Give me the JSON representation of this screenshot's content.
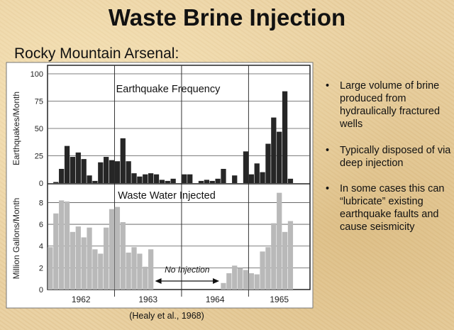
{
  "slide": {
    "title": "Waste Brine Injection",
    "subtitle": "Rocky Mountain Arsenal:",
    "bullets": [
      "Large volume of brine produced from hydraulically fractured wells",
      "Typically disposed of via deep injection",
      "In some cases this can “lubricate” existing earthquake faults and cause seismicity"
    ],
    "bullet_glyph": "•",
    "citation": "(Healy et al., 1968)"
  },
  "chart_data": [
    {
      "type": "bar",
      "title": "Earthquake Frequency",
      "ylabel": "Earthquakes/Month",
      "ylim": [
        0,
        100
      ],
      "yticks": [
        0,
        25,
        50,
        75,
        100
      ],
      "color": "#262626",
      "x_unit": "month index from Jan 1962 (0 = Jan 1962)",
      "x": [
        0,
        1,
        2,
        3,
        4,
        5,
        6,
        7,
        8,
        9,
        10,
        11,
        12,
        13,
        14,
        15,
        16,
        17,
        18,
        19,
        20,
        21,
        22,
        23,
        24,
        25,
        26,
        27,
        28,
        29,
        30,
        31,
        32,
        33,
        34,
        35,
        36,
        37,
        38,
        39,
        40,
        41,
        42,
        43,
        44,
        45,
        46
      ],
      "values": [
        0,
        1,
        13,
        34,
        24,
        28,
        22,
        7,
        2,
        19,
        24,
        21,
        20,
        41,
        20,
        9,
        6,
        8,
        9,
        8,
        3,
        2,
        4,
        0,
        8,
        8,
        0,
        2,
        3,
        2,
        4,
        13,
        0,
        7,
        0,
        29,
        8,
        18,
        10,
        36,
        60,
        47,
        84,
        4,
        0,
        0,
        0
      ]
    },
    {
      "type": "bar",
      "title": "Waste Water Injected",
      "ylabel": "Million Gallons/Month",
      "ylim": [
        0,
        9.4
      ],
      "yticks": [
        0,
        2,
        4,
        6,
        8
      ],
      "color": "#b9b9b9",
      "x": [
        0,
        1,
        2,
        3,
        4,
        5,
        6,
        7,
        8,
        9,
        10,
        11,
        12,
        13,
        14,
        15,
        16,
        17,
        18,
        19,
        20,
        21,
        22,
        23,
        24,
        25,
        26,
        27,
        28,
        29,
        30,
        31,
        32,
        33,
        34,
        35,
        36,
        37,
        38,
        39,
        40,
        41,
        42,
        43,
        44,
        45,
        46
      ],
      "values": [
        3.9,
        7.0,
        8.2,
        8.1,
        5.3,
        5.8,
        4.8,
        5.7,
        3.7,
        3.3,
        5.7,
        7.4,
        7.6,
        6.2,
        3.4,
        3.9,
        3.3,
        2.1,
        3.7,
        0,
        0,
        0,
        0,
        0,
        0,
        0,
        0,
        0,
        0,
        0,
        0,
        0.6,
        1.5,
        2.2,
        2.0,
        1.8,
        1.5,
        1.4,
        3.5,
        3.9,
        6.1,
        8.9,
        5.3,
        6.3,
        0,
        0,
        0
      ],
      "annotation": "No Injection",
      "annotation_span": [
        19,
        31
      ]
    }
  ],
  "x_axis": {
    "tick_labels": [
      "1962",
      "1963",
      "1964",
      "1965"
    ],
    "year_boundaries": [
      12,
      24,
      36
    ]
  }
}
